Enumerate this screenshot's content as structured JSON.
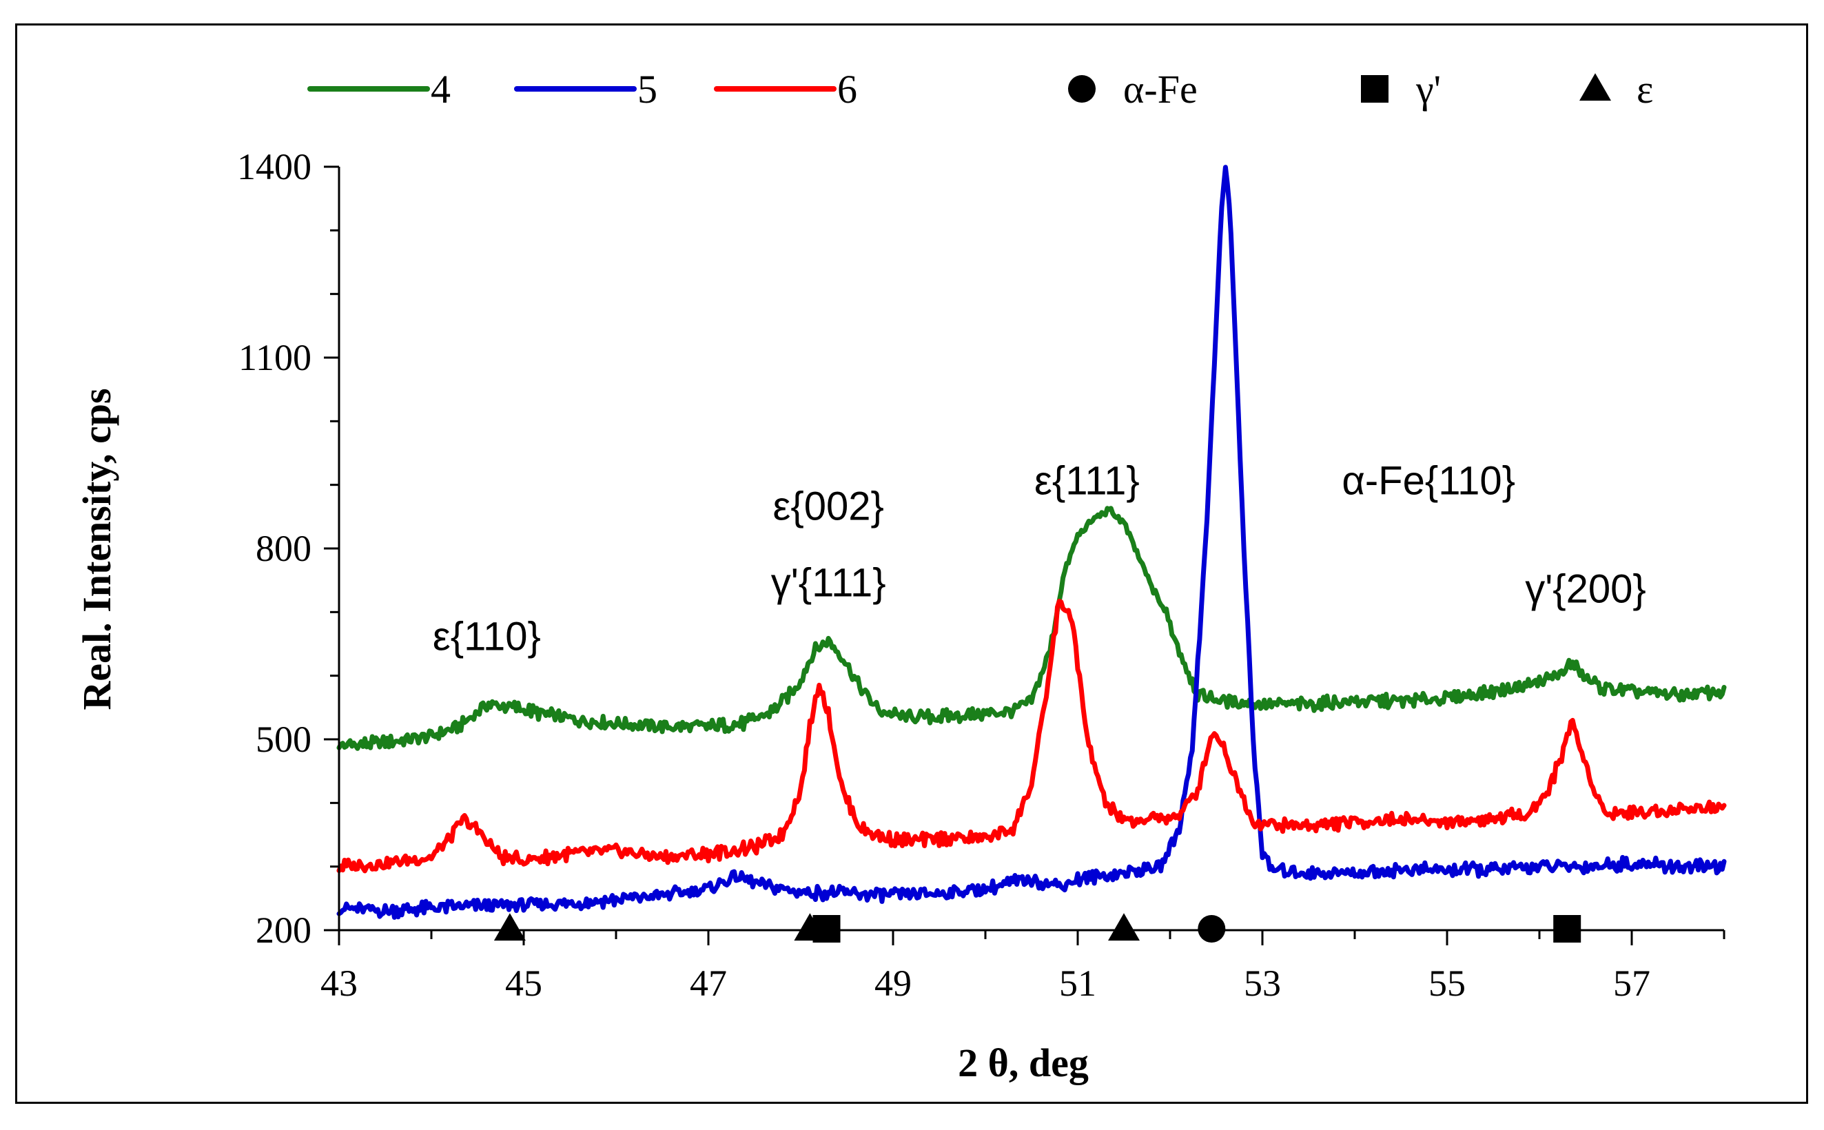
{
  "chart_data": {
    "type": "line",
    "title": "",
    "xlabel": "2 θ, deg",
    "ylabel": "Real. Intensity, cps",
    "xlim": [
      43,
      58
    ],
    "ylim": [
      200,
      1400
    ],
    "xticks": [
      "43",
      "45",
      "47",
      "49",
      "51",
      "53",
      "55",
      "57"
    ],
    "xtick_values": [
      43,
      45,
      47,
      49,
      51,
      53,
      55,
      57
    ],
    "yticks": [
      "200",
      "500",
      "800",
      "1100",
      "1400"
    ],
    "ytick_values": [
      200,
      500,
      800,
      1100,
      1400
    ],
    "grid": false,
    "legend_position": "top",
    "series": [
      {
        "name": "4",
        "color": "#1a7f1a",
        "x": [
          43.0,
          43.5,
          44.0,
          44.3,
          44.6,
          44.9,
          45.2,
          45.6,
          46.0,
          46.5,
          47.0,
          47.4,
          47.7,
          47.95,
          48.15,
          48.3,
          48.45,
          48.65,
          48.85,
          49.1,
          49.5,
          50.0,
          50.3,
          50.5,
          50.7,
          50.85,
          51.0,
          51.2,
          51.35,
          51.5,
          51.65,
          51.8,
          51.95,
          52.1,
          52.3,
          52.6,
          53.0,
          53.5,
          54.0,
          54.5,
          55.0,
          55.5,
          56.0,
          56.2,
          56.35,
          56.5,
          56.7,
          57.0,
          57.5,
          58.0
        ],
        "y": [
          490,
          495,
          505,
          520,
          555,
          550,
          540,
          530,
          525,
          520,
          520,
          525,
          545,
          580,
          640,
          655,
          630,
          580,
          545,
          535,
          535,
          540,
          545,
          560,
          640,
          760,
          820,
          850,
          860,
          840,
          790,
          740,
          700,
          640,
          570,
          560,
          555,
          555,
          560,
          560,
          565,
          575,
          590,
          600,
          620,
          595,
          580,
          575,
          570,
          575
        ]
      },
      {
        "name": "5",
        "color": "#0000d4",
        "x": [
          43.0,
          43.5,
          44.0,
          44.5,
          45.0,
          45.5,
          46.0,
          46.5,
          47.0,
          47.3,
          47.6,
          48.0,
          48.5,
          49.0,
          49.5,
          50.0,
          50.3,
          50.5,
          50.8,
          51.0,
          51.5,
          51.9,
          52.1,
          52.25,
          52.4,
          52.5,
          52.55,
          52.6,
          52.65,
          52.7,
          52.8,
          52.9,
          53.0,
          53.1,
          53.5,
          54.0,
          54.5,
          55.0,
          55.5,
          56.0,
          56.5,
          57.0,
          57.5,
          58.0
        ],
        "y": [
          235,
          230,
          235,
          238,
          240,
          242,
          248,
          255,
          265,
          285,
          270,
          260,
          258,
          255,
          258,
          265,
          275,
          280,
          270,
          280,
          290,
          300,
          360,
          500,
          850,
          1150,
          1320,
          1400,
          1330,
          1150,
          800,
          500,
          320,
          295,
          290,
          290,
          295,
          295,
          295,
          300,
          300,
          305,
          300,
          300
        ]
      },
      {
        "name": "6",
        "color": "#ff0000",
        "x": [
          43.0,
          43.5,
          44.0,
          44.2,
          44.35,
          44.55,
          44.75,
          45.0,
          45.5,
          46.0,
          46.5,
          47.0,
          47.5,
          47.8,
          48.0,
          48.1,
          48.2,
          48.3,
          48.45,
          48.65,
          48.9,
          49.2,
          49.6,
          50.0,
          50.3,
          50.5,
          50.65,
          50.8,
          50.95,
          51.1,
          51.3,
          51.5,
          51.8,
          52.1,
          52.3,
          52.45,
          52.55,
          52.7,
          52.9,
          53.2,
          53.6,
          54.0,
          54.5,
          55.0,
          55.5,
          55.9,
          56.1,
          56.25,
          56.35,
          56.5,
          56.7,
          57.0,
          57.5,
          58.0
        ],
        "y": [
          300,
          305,
          315,
          345,
          375,
          350,
          315,
          310,
          320,
          325,
          315,
          320,
          330,
          350,
          420,
          520,
          590,
          540,
          420,
          360,
          345,
          340,
          345,
          345,
          360,
          430,
          560,
          720,
          680,
          500,
          400,
          370,
          375,
          380,
          420,
          510,
          500,
          440,
          370,
          365,
          365,
          370,
          375,
          370,
          375,
          385,
          420,
          480,
          530,
          460,
          385,
          385,
          390,
          395
        ]
      }
    ],
    "legend": [
      {
        "label": "4",
        "kind": "line",
        "color": "#1a7f1a"
      },
      {
        "label": "5",
        "kind": "line",
        "color": "#0000d4"
      },
      {
        "label": "6",
        "kind": "line",
        "color": "#ff0000"
      },
      {
        "label": "α-Fe",
        "kind": "circle",
        "color": "#000000"
      },
      {
        "label": "γ'",
        "kind": "square",
        "color": "#000000"
      },
      {
        "label": "ε",
        "kind": "triangle",
        "color": "#000000"
      }
    ],
    "phase_markers": [
      {
        "phase": "ε",
        "kind": "triangle",
        "x": 44.85
      },
      {
        "phase": "ε",
        "kind": "triangle",
        "x": 48.1
      },
      {
        "phase": "γ'",
        "kind": "square",
        "x": 48.28
      },
      {
        "phase": "ε",
        "kind": "triangle",
        "x": 51.5
      },
      {
        "phase": "α-Fe",
        "kind": "circle",
        "x": 52.45
      },
      {
        "phase": "γ'",
        "kind": "square",
        "x": 56.3
      }
    ],
    "annotations": [
      {
        "text": "ε{110}",
        "x": 44.6,
        "y": 640
      },
      {
        "text": "ε{002}",
        "x": 48.3,
        "y": 845
      },
      {
        "text": "γ'{111}",
        "x": 48.3,
        "y": 725
      },
      {
        "text": "ε{111}",
        "x": 51.1,
        "y": 885
      },
      {
        "text": "α-Fe{110}",
        "x": 54.8,
        "y": 885
      },
      {
        "text": "γ'{200}",
        "x": 56.5,
        "y": 715
      }
    ]
  }
}
